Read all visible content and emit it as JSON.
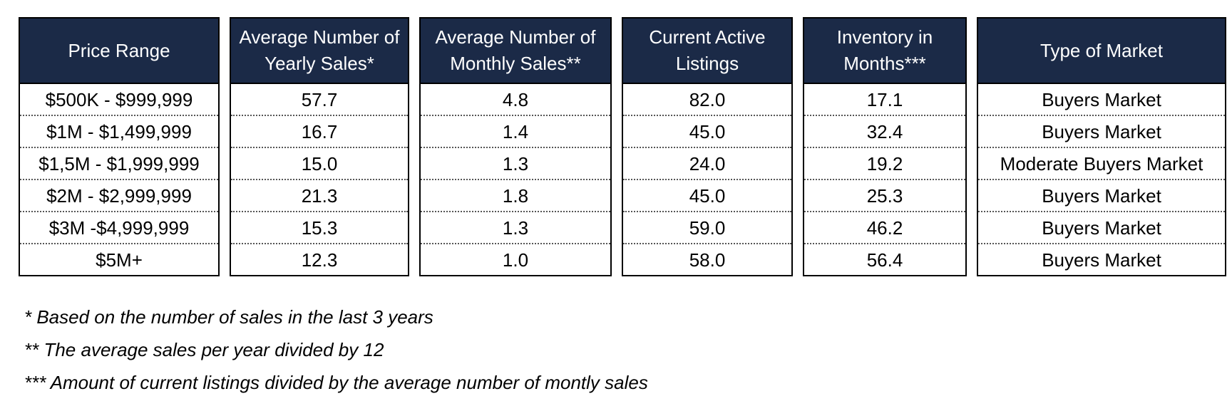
{
  "table": {
    "columns": [
      {
        "header": "Price Range",
        "cells": [
          "$500K - $999,999",
          "$1M - $1,499,999",
          "$1,5M - $1,999,999",
          "$2M - $2,999,999",
          "$3M -$4,999,999",
          "$5M+"
        ]
      },
      {
        "header": "Average Number of\nYearly Sales*",
        "cells": [
          "57.7",
          "16.7",
          "15.0",
          "21.3",
          "15.3",
          "12.3"
        ]
      },
      {
        "header": "Average Number of\nMonthly Sales**",
        "cells": [
          "4.8",
          "1.4",
          "1.3",
          "1.8",
          "1.3",
          "1.0"
        ]
      },
      {
        "header": "Current Active\nListings",
        "cells": [
          "82.0",
          "45.0",
          "24.0",
          "45.0",
          "59.0",
          "58.0"
        ]
      },
      {
        "header": "Inventory in\nMonths***",
        "cells": [
          "17.1",
          "32.4",
          "19.2",
          "25.3",
          "46.2",
          "56.4"
        ]
      },
      {
        "header": "Type of Market",
        "cells": [
          "Buyers Market",
          "Buyers Market",
          "Moderate Buyers Market",
          "Buyers Market",
          "Buyers Market",
          "Buyers Market"
        ]
      }
    ]
  },
  "footnotes": [
    "* Based on the number of sales in the last 3 years",
    "** The average sales per year divided by 12",
    "*** Amount of current listings divided by the average number of montly sales"
  ],
  "colors": {
    "header_background": "#1b2a47",
    "header_text": "#ffffff",
    "border": "#000000"
  }
}
